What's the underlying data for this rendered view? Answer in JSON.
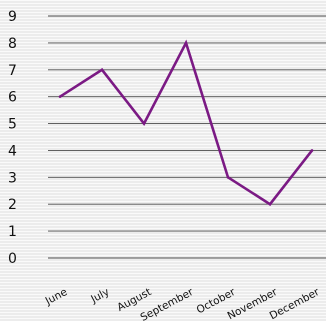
{
  "chart_data": {
    "type": "line",
    "categories": [
      "June",
      "July",
      "August",
      "September",
      "October",
      "November",
      "December"
    ],
    "values": [
      6,
      7,
      5,
      8,
      3,
      2,
      4
    ],
    "ylim": [
      0,
      9
    ],
    "yticks": [
      0,
      1,
      2,
      3,
      4,
      5,
      6,
      7,
      8,
      9
    ],
    "grid": true,
    "colors": {
      "line": "#7b1a84"
    }
  }
}
